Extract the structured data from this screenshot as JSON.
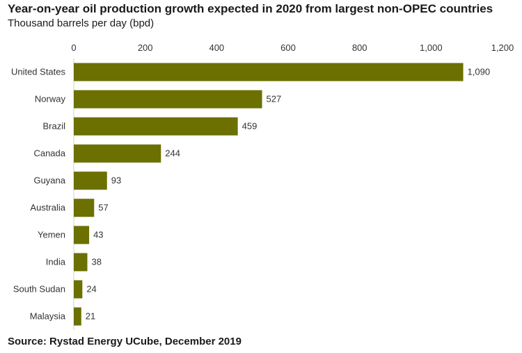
{
  "chart_data": {
    "type": "bar",
    "orientation": "horizontal",
    "title": "Year-on-year oil production growth expected in 2020 from largest non-OPEC countries",
    "subtitle": "Thousand barrels per day (bpd)",
    "source": "Source: Rystad Energy UCube, December 2019",
    "categories": [
      "United States",
      "Norway",
      "Brazil",
      "Canada",
      "Guyana",
      "Australia",
      "Yemen",
      "India",
      "South Sudan",
      "Malaysia"
    ],
    "values": [
      1090,
      527,
      459,
      244,
      93,
      57,
      43,
      38,
      24,
      21
    ],
    "value_labels": [
      "1,090",
      "527",
      "459",
      "244",
      "93",
      "57",
      "43",
      "38",
      "24",
      "21"
    ],
    "xlim": [
      0,
      1200
    ],
    "xticks": [
      0,
      200,
      400,
      600,
      800,
      1000,
      1200
    ],
    "xtick_labels": [
      "0",
      "200",
      "400",
      "600",
      "800",
      "1,000",
      "1,200"
    ],
    "xaxis_position": "top",
    "grid": false,
    "bar_color": "#6b7000"
  }
}
